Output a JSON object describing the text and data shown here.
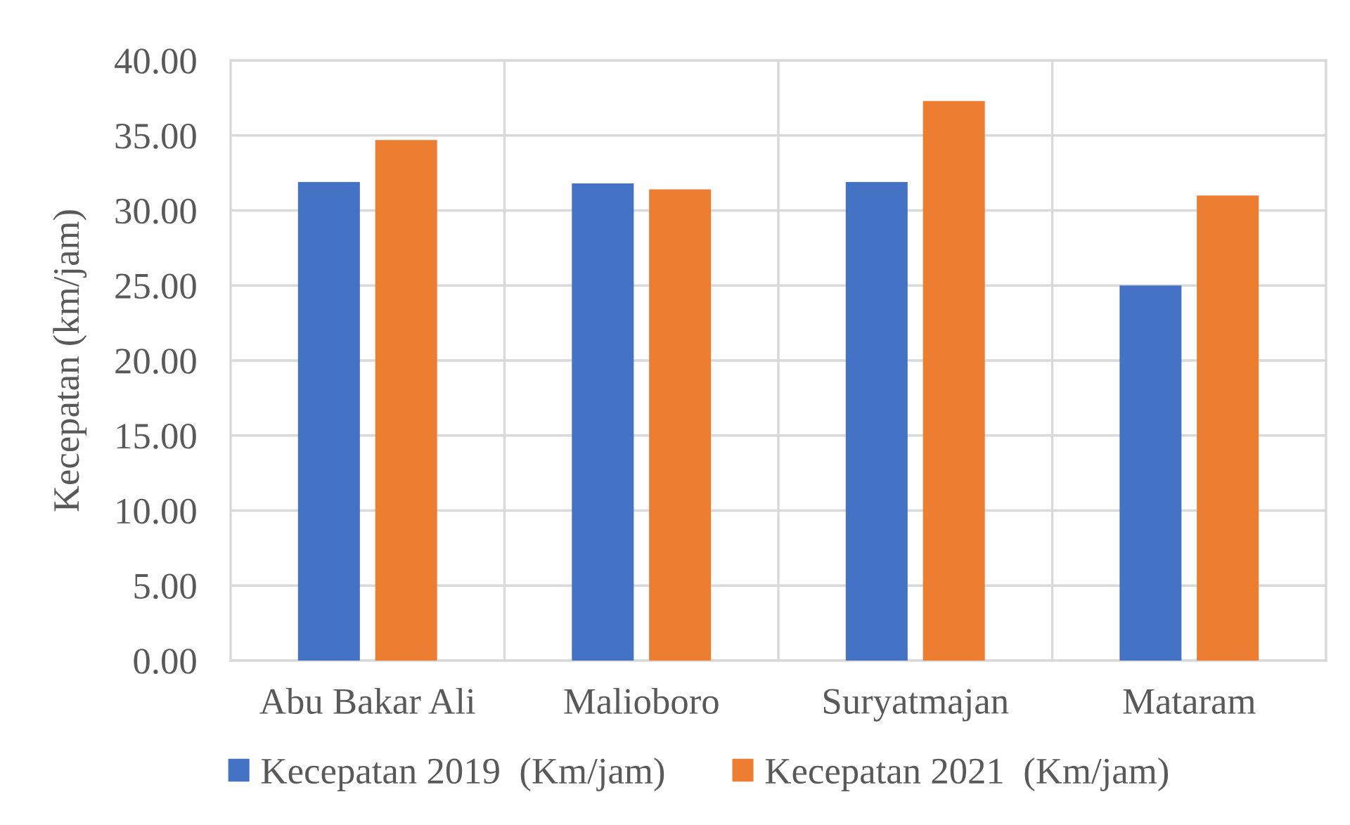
{
  "chart_data": {
    "type": "bar",
    "ylabel": "Kecepatan (km/jam)",
    "categories": [
      "Abu Bakar Ali",
      "Malioboro",
      "Suryatmajan",
      "Mataram"
    ],
    "series": [
      {
        "name": "Kecepatan 2019  (Km/jam)",
        "color": "#4472c4",
        "values": [
          31.9,
          31.8,
          31.9,
          25.0
        ]
      },
      {
        "name": "Kecepatan 2021  (Km/jam)",
        "color": "#ed7d31",
        "values": [
          34.7,
          31.4,
          37.3,
          31.0
        ]
      }
    ],
    "ylim": [
      0,
      40
    ],
    "yticks": [
      {
        "value": 0,
        "label": "0.00"
      },
      {
        "value": 5,
        "label": "5.00"
      },
      {
        "value": 10,
        "label": "10.00"
      },
      {
        "value": 15,
        "label": "15.00"
      },
      {
        "value": 20,
        "label": "20.00"
      },
      {
        "value": 25,
        "label": "25.00"
      },
      {
        "value": 30,
        "label": "30.00"
      },
      {
        "value": 35,
        "label": "35.00"
      },
      {
        "value": 40,
        "label": "40.00"
      }
    ],
    "grid": true,
    "legend": "bottom"
  }
}
